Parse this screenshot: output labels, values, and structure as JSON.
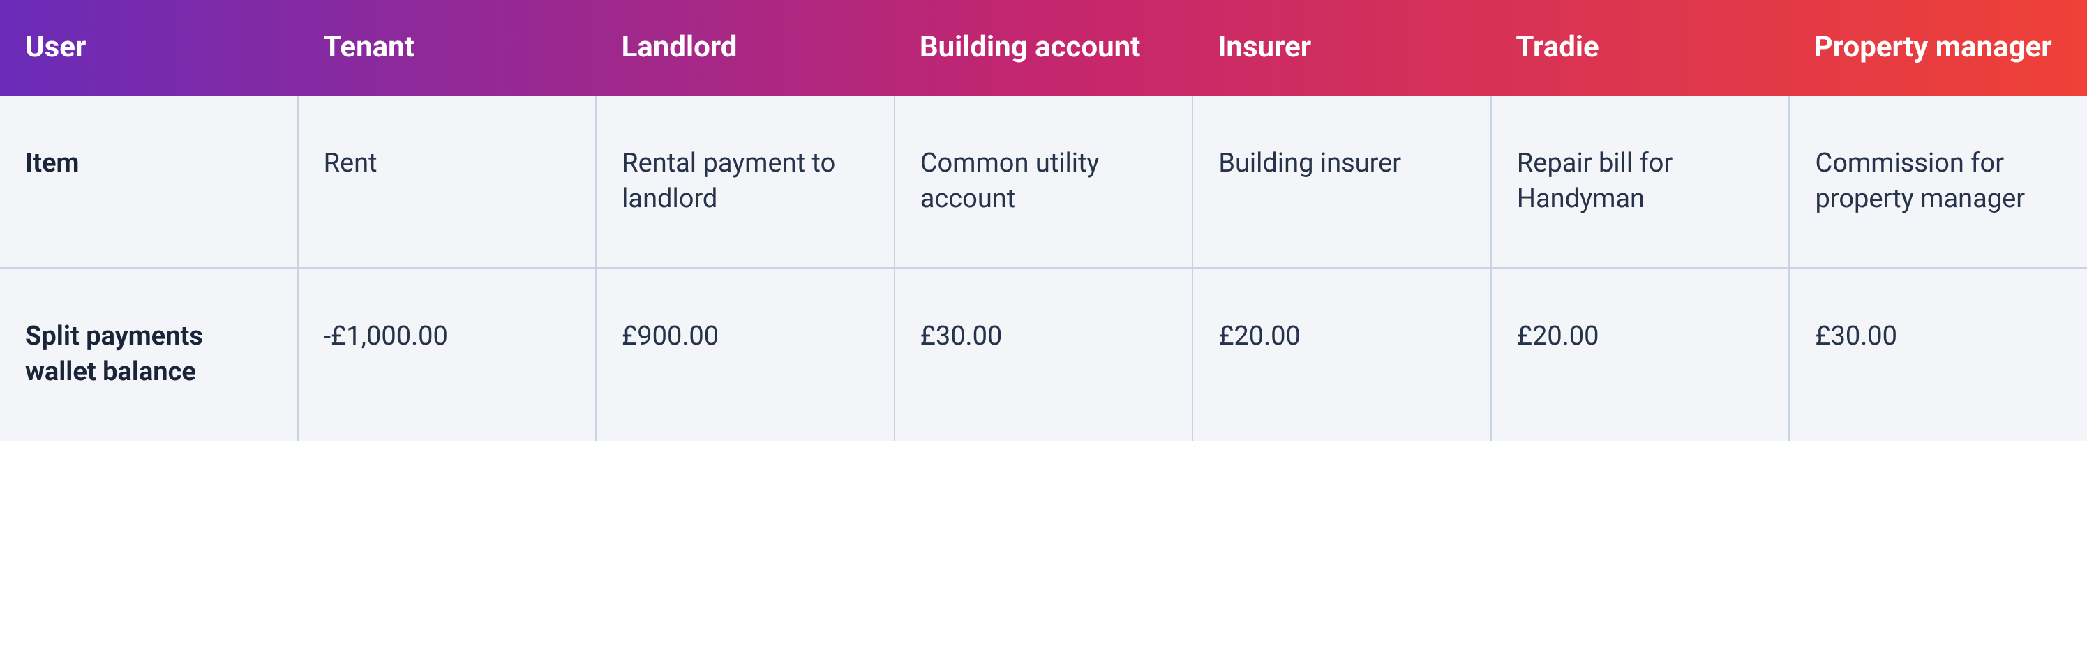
{
  "table": {
    "type": "table",
    "header_gradient": {
      "start": "#6a2bb8",
      "mid": "#c4266e",
      "end": "#ef4137"
    },
    "header_text_color": "#ffffff",
    "body_bg_color": "#f3f5f9",
    "body_text_color": "#27334a",
    "label_text_color": "#1b253a",
    "border_color": "#c8d3e4",
    "header_fontsize": 42,
    "body_fontsize": 38,
    "columns": [
      "User",
      "Tenant",
      "Landlord",
      "Building account",
      "Insurer",
      "Tradie",
      "Property manager"
    ],
    "rows": [
      {
        "label": "Item",
        "cells": [
          "Rent",
          "Rental payment to landlord",
          "Common utility account",
          "Building insurer",
          "Repair bill for Handyman",
          "Commission for property manager"
        ]
      },
      {
        "label": "Split payments wallet balance",
        "cells": [
          "-£1,000.00",
          "£900.00",
          "£30.00",
          "£20.00",
          "£20.00",
          "£30.00"
        ]
      }
    ]
  }
}
